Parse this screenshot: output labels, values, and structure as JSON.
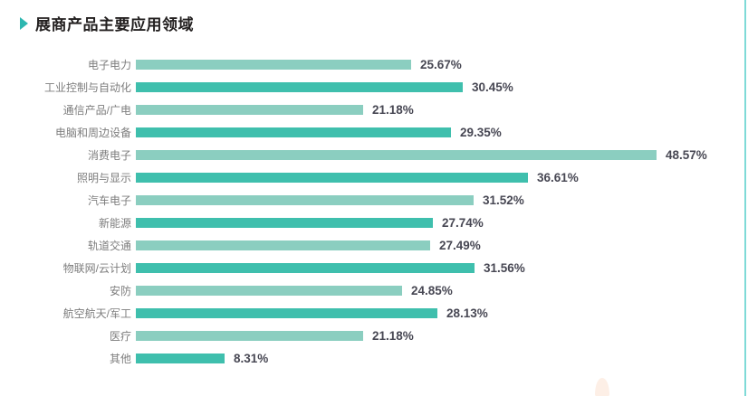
{
  "header": {
    "title": "展商产品主要应用领域"
  },
  "chart_data": {
    "type": "bar",
    "orientation": "horizontal",
    "title": "展商产品主要应用领域",
    "categories": [
      "电子电力",
      "工业控制与自动化",
      "通信产品/广电",
      "电脑和周边设备",
      "消费电子",
      "照明与显示",
      "汽车电子",
      "新能源",
      "轨道交通",
      "物联网/云计划",
      "安防",
      "航空航天/军工",
      "医疗",
      "其他"
    ],
    "values": [
      25.67,
      30.45,
      21.18,
      29.35,
      48.57,
      36.61,
      31.52,
      27.74,
      27.49,
      31.56,
      24.85,
      28.13,
      21.18,
      8.31
    ],
    "value_labels": [
      "25.67%",
      "30.45%",
      "21.18%",
      "29.35%",
      "48.57%",
      "36.61%",
      "31.52%",
      "27.74%",
      "27.49%",
      "31.56%",
      "24.85%",
      "28.13%",
      "21.18%",
      "8.31%"
    ],
    "xlim": [
      0,
      50
    ],
    "grid": false,
    "legend": false,
    "colors": {
      "bar_light": "#8bcec0",
      "bar_dark": "#3fbfad",
      "title_marker": "#2db7b0",
      "label_text": "#7d7d7d",
      "value_text": "#474753",
      "right_edge_line": "#7fdad7",
      "peach_deco": "#fdefe6"
    }
  }
}
